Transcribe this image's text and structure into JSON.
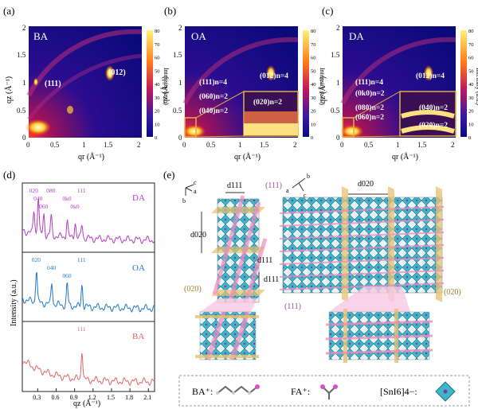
{
  "figure": {
    "panels": {
      "a": {
        "label": "(a)",
        "sample": "BA",
        "peaks": [
          "(111)",
          "(012)"
        ]
      },
      "b": {
        "label": "(b)",
        "sample": "OA",
        "peaks": [
          "(111)n=4",
          "(012)n=4",
          "(060)n=2",
          "(040)n=2"
        ],
        "inset_peak": "(020)n=2"
      },
      "c": {
        "label": "(c)",
        "sample": "DA",
        "peaks": [
          "(111)n=4",
          "(0k0)n=2",
          "(080)n=2",
          "(060)n=2",
          "(012)n=4"
        ],
        "inset_peaks": [
          "(040)n=2",
          "(020)n=2"
        ]
      },
      "d": {
        "label": "(d)",
        "ylabel": "Intensity (a.u.)",
        "xlabel": "qz (Å⁻¹)"
      },
      "e": {
        "label": "(e)"
      }
    },
    "gixd_axes": {
      "xlabel": "qr (Å⁻¹)",
      "ylabel": "qz (Å⁻¹)",
      "xticks": [
        "0",
        "0.5",
        "1",
        "1.5",
        "2"
      ],
      "yticks": [
        "0",
        "0.5",
        "1",
        "1.5",
        "2"
      ]
    },
    "colorbar": {
      "label": "Intensity (a.u.)",
      "ticks": [
        "0",
        "10",
        "20",
        "30",
        "40",
        "50",
        "60",
        "70",
        "80"
      ]
    },
    "structure": {
      "d111": "d111",
      "d020": "d020",
      "plane_111": "(111)",
      "plane_020": "(020)",
      "axis_c": "c",
      "axis_a": "a",
      "axis_b": "b",
      "legend": {
        "ba": "BA⁺:",
        "fa": "FA⁺:",
        "sni": "[SnI6]4−:"
      }
    }
  },
  "chart_data": {
    "type": "line",
    "title": "",
    "xlabel": "qz (Å⁻¹)",
    "ylabel": "Intensity (a.u.)",
    "xlim": [
      0.05,
      2.2
    ],
    "xticks": [
      "0.3",
      "0.6",
      "0.9",
      "1.2",
      "1.5",
      "1.8",
      "2.1"
    ],
    "series": [
      {
        "name": "DA",
        "color": "#b33dc6",
        "peaks": [
          {
            "x": 0.24,
            "label": "020"
          },
          {
            "x": 0.31,
            "label": "040"
          },
          {
            "x": 0.4,
            "label": "060"
          },
          {
            "x": 0.52,
            "label": "080"
          },
          {
            "x": 0.78,
            "label": "0k0"
          },
          {
            "x": 0.91,
            "label": "0k0"
          },
          {
            "x": 1.02,
            "label": "111"
          }
        ]
      },
      {
        "name": "OA",
        "color": "#1f78c8",
        "peaks": [
          {
            "x": 0.28,
            "label": "020"
          },
          {
            "x": 0.53,
            "label": "040"
          },
          {
            "x": 0.78,
            "label": "060"
          },
          {
            "x": 1.02,
            "label": "111"
          }
        ]
      },
      {
        "name": "BA",
        "color": "#e06666",
        "peaks": [
          {
            "x": 1.02,
            "label": "111"
          }
        ]
      }
    ]
  }
}
